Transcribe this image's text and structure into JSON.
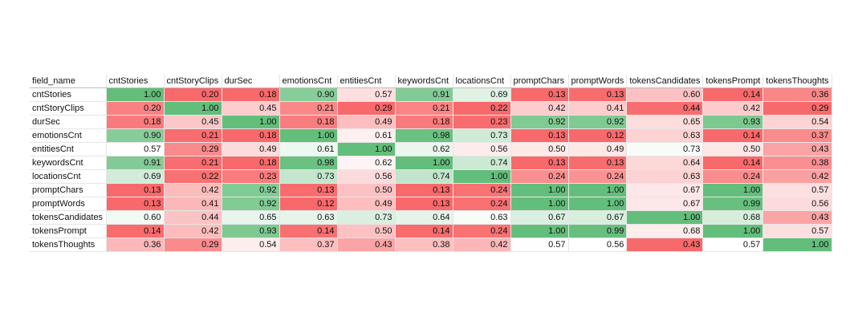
{
  "header_corner": "field_name",
  "columns": [
    "cntStories",
    "cntStoryClips",
    "durSec",
    "emotionsCnt",
    "entitiesCnt",
    "keywordsCnt",
    "locationsCnt",
    "promptChars",
    "promptWords",
    "tokensCandidates",
    "tokensPrompt",
    "tokensThoughts"
  ],
  "rows": [
    {
      "name": "cntStories",
      "values": [
        "1.00",
        "0.20",
        "0.18",
        "0.90",
        "0.57",
        "0.91",
        "0.69",
        "0.13",
        "0.13",
        "0.60",
        "0.14",
        "0.36"
      ]
    },
    {
      "name": "cntStoryClips",
      "values": [
        "0.20",
        "1.00",
        "0.45",
        "0.21",
        "0.29",
        "0.21",
        "0.22",
        "0.42",
        "0.41",
        "0.44",
        "0.42",
        "0.29"
      ]
    },
    {
      "name": "durSec",
      "values": [
        "0.18",
        "0.45",
        "1.00",
        "0.18",
        "0.49",
        "0.18",
        "0.23",
        "0.92",
        "0.92",
        "0.65",
        "0.93",
        "0.54"
      ]
    },
    {
      "name": "emotionsCnt",
      "values": [
        "0.90",
        "0.21",
        "0.18",
        "1.00",
        "0.61",
        "0.98",
        "0.73",
        "0.13",
        "0.12",
        "0.63",
        "0.14",
        "0.37"
      ]
    },
    {
      "name": "entitiesCnt",
      "values": [
        "0.57",
        "0.29",
        "0.49",
        "0.61",
        "1.00",
        "0.62",
        "0.56",
        "0.50",
        "0.49",
        "0.73",
        "0.50",
        "0.43"
      ]
    },
    {
      "name": "keywordsCnt",
      "values": [
        "0.91",
        "0.21",
        "0.18",
        "0.98",
        "0.62",
        "1.00",
        "0.74",
        "0.13",
        "0.13",
        "0.64",
        "0.14",
        "0.38"
      ]
    },
    {
      "name": "locationsCnt",
      "values": [
        "0.69",
        "0.22",
        "0.23",
        "0.73",
        "0.56",
        "0.74",
        "1.00",
        "0.24",
        "0.24",
        "0.63",
        "0.24",
        "0.42"
      ]
    },
    {
      "name": "promptChars",
      "values": [
        "0.13",
        "0.42",
        "0.92",
        "0.13",
        "0.50",
        "0.13",
        "0.24",
        "1.00",
        "1.00",
        "0.67",
        "1.00",
        "0.57"
      ]
    },
    {
      "name": "promptWords",
      "values": [
        "0.13",
        "0.41",
        "0.92",
        "0.12",
        "0.49",
        "0.13",
        "0.24",
        "1.00",
        "1.00",
        "0.67",
        "0.99",
        "0.56"
      ]
    },
    {
      "name": "tokensCandidates",
      "values": [
        "0.60",
        "0.44",
        "0.65",
        "0.63",
        "0.73",
        "0.64",
        "0.63",
        "0.67",
        "0.67",
        "1.00",
        "0.68",
        "0.43"
      ]
    },
    {
      "name": "tokensPrompt",
      "values": [
        "0.14",
        "0.42",
        "0.93",
        "0.14",
        "0.50",
        "0.14",
        "0.24",
        "1.00",
        "0.99",
        "0.68",
        "1.00",
        "0.57"
      ]
    },
    {
      "name": "tokensThoughts",
      "values": [
        "0.36",
        "0.29",
        "0.54",
        "0.37",
        "0.43",
        "0.38",
        "0.42",
        "0.57",
        "0.56",
        "0.43",
        "0.57",
        "1.00"
      ]
    }
  ],
  "color_scale": {
    "low": "#f8696b",
    "mid": "#ffffff",
    "high": "#63be7b"
  }
}
